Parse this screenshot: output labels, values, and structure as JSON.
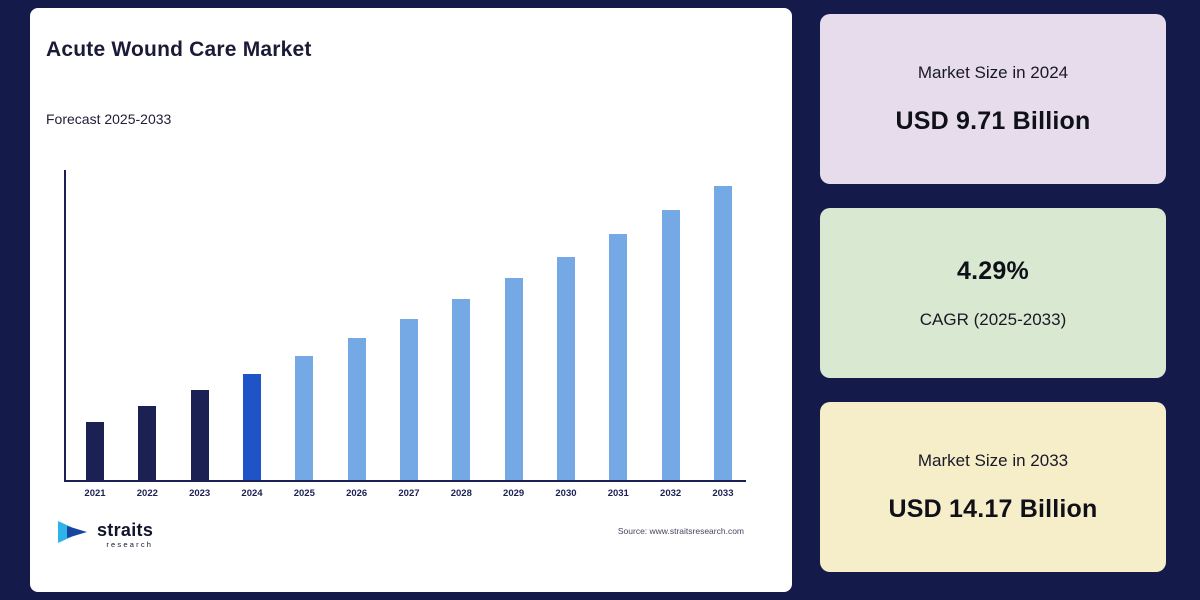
{
  "chart_card": {
    "title": "Acute Wound Care Market",
    "subtitle": "Forecast 2025-2033",
    "source": "Source: www.straitsresearch.com",
    "logo_name": "straits",
    "logo_sub": "research"
  },
  "chart_data": {
    "type": "bar",
    "title": "Acute Wound Care Market",
    "subtitle": "Forecast 2025-2033",
    "unit": "USD Billion",
    "categories": [
      "2021",
      "2022",
      "2023",
      "2024",
      "2025",
      "2026",
      "2027",
      "2028",
      "2029",
      "2030",
      "2031",
      "2032",
      "2033"
    ],
    "values": [
      8.56,
      8.93,
      9.31,
      9.71,
      10.13,
      10.56,
      11.01,
      11.49,
      11.98,
      12.49,
      13.03,
      13.59,
      14.17
    ],
    "series": [
      {
        "name": "Market Size (USD Billion)",
        "values": [
          8.56,
          8.93,
          9.31,
          9.71,
          10.13,
          10.56,
          11.01,
          11.49,
          11.98,
          12.49,
          13.03,
          13.59,
          14.17
        ]
      }
    ],
    "colors": {
      "historical": "#1b2153",
      "base_year": "#1f54c9",
      "forecast": "#74a9e6"
    },
    "roles": [
      "historical",
      "historical",
      "historical",
      "base_year",
      "forecast",
      "forecast",
      "forecast",
      "forecast",
      "forecast",
      "forecast",
      "forecast",
      "forecast",
      "forecast"
    ],
    "xlabel": "",
    "ylabel": "",
    "ylim": [
      8,
      14.5
    ],
    "grid": false,
    "legend": "none",
    "y_axis_ticks": "hidden"
  },
  "stats": [
    {
      "label": "Market Size in 2024",
      "value": "USD 9.71 Billion",
      "bg": "#e6dcec"
    },
    {
      "value": "4.29%",
      "label": "CAGR (2025-2033)",
      "bg": "#d9e8d1"
    },
    {
      "label": "Market Size in 2033",
      "value": "USD 14.17 Billion",
      "bg": "#f6eec9"
    }
  ]
}
